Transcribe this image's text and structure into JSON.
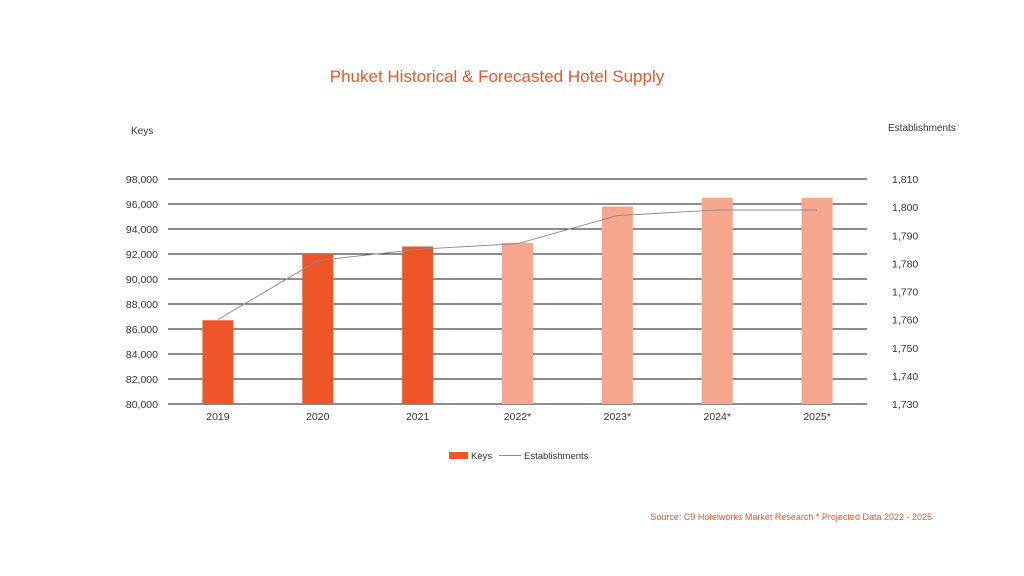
{
  "chart_data": {
    "type": "bar",
    "title": "Phuket Historical & Forecasted Hotel Supply",
    "ylabel": "Keys",
    "y2label": "Establishments",
    "categories": [
      "2019",
      "2020",
      "2021",
      "2022*",
      "2023*",
      "2024*",
      "2025*"
    ],
    "ylim": [
      80000,
      98000
    ],
    "yticks": [
      "80,000",
      "82,000",
      "84,000",
      "86,000",
      "88,000",
      "90,000",
      "92,000",
      "94,000",
      "96,000",
      "98,000"
    ],
    "y2lim": [
      1730,
      1810
    ],
    "y2ticks": [
      "1,730",
      "1,740",
      "1,750",
      "1,760",
      "1,770",
      "1,780",
      "1,790",
      "1,800",
      "1,810"
    ],
    "grid": true,
    "legend_position": "bottom-center",
    "series": [
      {
        "name": "Keys",
        "kind": "bar",
        "axis": "left",
        "values": [
          86700,
          92000,
          92600,
          92900,
          95800,
          96500,
          96500
        ],
        "projected": [
          false,
          false,
          false,
          true,
          true,
          true,
          true
        ]
      },
      {
        "name": "Establishments",
        "kind": "line",
        "axis": "right",
        "values": [
          1760,
          1781,
          1785,
          1787,
          1797,
          1799,
          1799
        ]
      }
    ],
    "colors": {
      "historical": "#EE5528",
      "projected": "#F5A68C",
      "line": "#8C8C8C",
      "grid": "#1A1A1A",
      "title": "#EE5528"
    },
    "source": "Source: C9 Hotelworks Market Research * Projected Data 2022 - 2025"
  }
}
